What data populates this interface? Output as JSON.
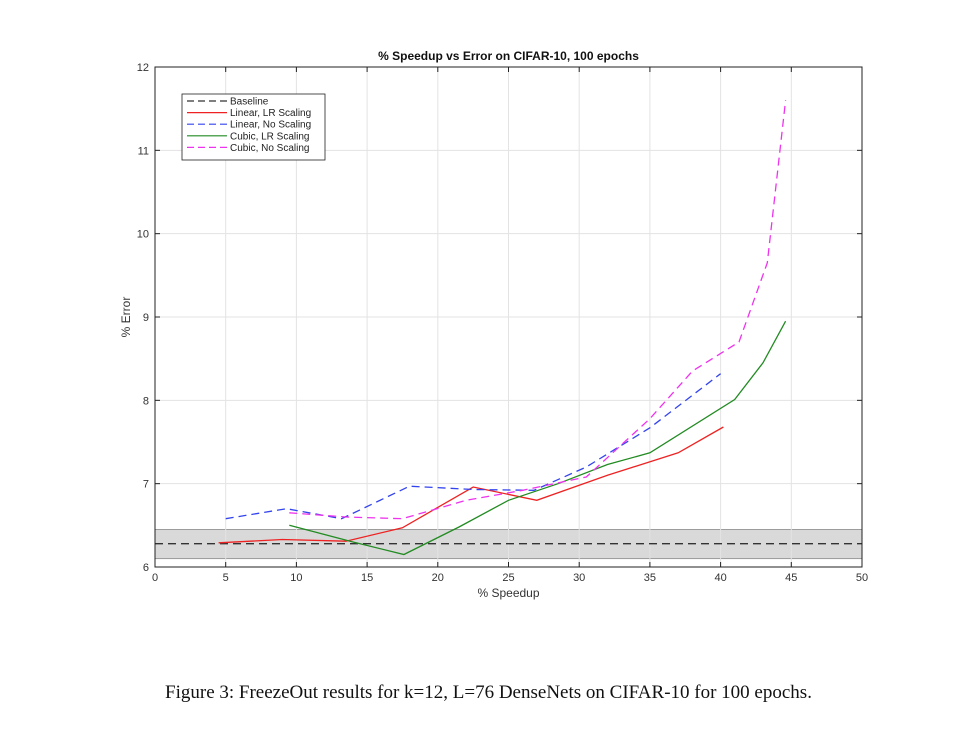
{
  "chart_data": {
    "type": "line",
    "title": "% Speedup vs Error on CIFAR-10, 100 epochs",
    "xlabel": "% Speedup",
    "ylabel": "% Error",
    "xlim": [
      0,
      50
    ],
    "ylim": [
      6,
      12
    ],
    "xticks": [
      0,
      5,
      10,
      15,
      20,
      25,
      30,
      35,
      40,
      45,
      50
    ],
    "yticks": [
      6,
      7,
      8,
      9,
      10,
      11,
      12
    ],
    "grid": true,
    "legend_position": "top-left",
    "baseline_band": {
      "low": 6.1,
      "high": 6.45,
      "color": "#d9d9d9"
    },
    "series": [
      {
        "name": "Baseline",
        "color": "#333333",
        "dash": true,
        "x": [
          0,
          50
        ],
        "y": [
          6.28,
          6.28
        ]
      },
      {
        "name": "Linear, LR Scaling",
        "color": "#ee2222",
        "dash": false,
        "x": [
          4.5,
          9,
          13.5,
          17.5,
          22.5,
          27,
          32,
          37,
          40.2
        ],
        "y": [
          6.29,
          6.33,
          6.31,
          6.47,
          6.96,
          6.8,
          7.1,
          7.37,
          7.68
        ]
      },
      {
        "name": "Linear, No Scaling",
        "color": "#3344ee",
        "dash": true,
        "x": [
          5,
          9.3,
          13.2,
          18,
          22.5,
          26.8,
          30.5,
          35,
          40
        ],
        "y": [
          6.58,
          6.7,
          6.58,
          6.97,
          6.93,
          6.92,
          7.2,
          7.67,
          8.32
        ]
      },
      {
        "name": "Cubic, LR Scaling",
        "color": "#228b22",
        "dash": false,
        "x": [
          9.5,
          14,
          17.6,
          21.5,
          25,
          28.5,
          32,
          35,
          41,
          43,
          44.6
        ],
        "y": [
          6.5,
          6.3,
          6.15,
          6.48,
          6.8,
          7.0,
          7.23,
          7.37,
          8.01,
          8.45,
          8.95
        ]
      },
      {
        "name": "Cubic, No Scaling",
        "color": "#ee33ee",
        "dash": true,
        "x": [
          9.5,
          13.5,
          17.5,
          22,
          26,
          30.5,
          35,
          38,
          41.3,
          43.3,
          44.6
        ],
        "y": [
          6.65,
          6.6,
          6.58,
          6.8,
          6.92,
          7.08,
          7.78,
          8.35,
          8.7,
          9.65,
          11.6
        ]
      }
    ]
  },
  "caption": "Figure 3: FreezeOut results for k=12, L=76 DenseNets on CIFAR-10 for 100 epochs."
}
